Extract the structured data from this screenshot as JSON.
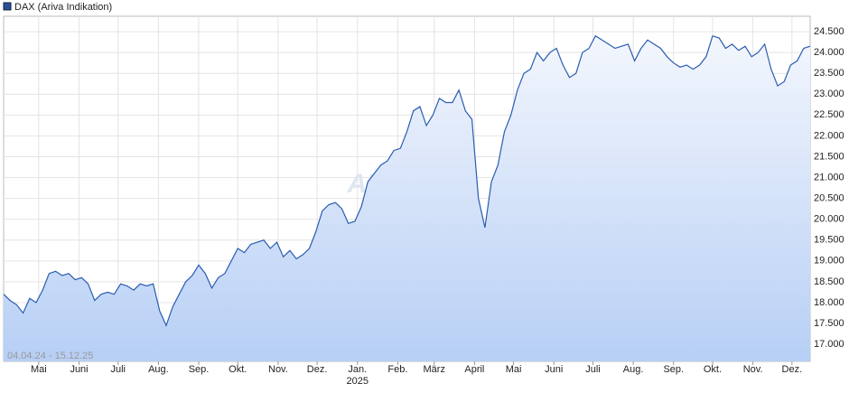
{
  "chart_data": {
    "type": "area",
    "series": [
      {
        "name": "DAX (Ariva Indikation)",
        "color": "#2a5db0",
        "values": [
          18200,
          18050,
          17950,
          17750,
          18100,
          18000,
          18300,
          18700,
          18750,
          18650,
          18700,
          18550,
          18600,
          18450,
          18050,
          18200,
          18250,
          18200,
          18450,
          18400,
          18300,
          18450,
          18400,
          18450,
          17800,
          17450,
          17900,
          18200,
          18500,
          18650,
          18900,
          18700,
          18350,
          18600,
          18700,
          19000,
          19300,
          19200,
          19400,
          19450,
          19500,
          19300,
          19450,
          19100,
          19250,
          19050,
          19150,
          19300,
          19700,
          20200,
          20350,
          20400,
          20250,
          19900,
          19950,
          20300,
          20900,
          21100,
          21300,
          21400,
          21650,
          21700,
          22100,
          22600,
          22700,
          22250,
          22500,
          22900,
          22800,
          22800,
          23100,
          22600,
          22400,
          20500,
          19800,
          20900,
          21300,
          22100,
          22500,
          23100,
          23500,
          23600,
          24000,
          23800,
          24000,
          24100,
          23700,
          23400,
          23500,
          24000,
          24100,
          24400,
          24300,
          24200,
          24100,
          24150,
          24200,
          23800,
          24100,
          24300,
          24200,
          24100,
          23900,
          23750,
          23650,
          23700,
          23600,
          23700,
          23900,
          24400,
          24350,
          24100,
          24200,
          24050,
          24150,
          23900,
          24000,
          24200,
          23600,
          23200,
          23300,
          23700,
          23800,
          24100,
          24150
        ]
      }
    ],
    "xlim": [
      0,
      124
    ],
    "xticks": [
      {
        "value": 5.4,
        "label": "Mai"
      },
      {
        "value": 11.6,
        "label": "Juni"
      },
      {
        "value": 17.6,
        "label": "Juli"
      },
      {
        "value": 23.8,
        "label": "Aug."
      },
      {
        "value": 30,
        "label": "Sep."
      },
      {
        "value": 36,
        "label": "Okt."
      },
      {
        "value": 42.2,
        "label": "Nov."
      },
      {
        "value": 48.2,
        "label": "Dez."
      },
      {
        "value": 54.4,
        "label": "Jan."
      },
      {
        "value": 60.6,
        "label": "Feb."
      },
      {
        "value": 66.2,
        "label": "März"
      },
      {
        "value": 72.4,
        "label": "April"
      },
      {
        "value": 78.4,
        "label": "Mai"
      },
      {
        "value": 84.6,
        "label": "Juni"
      },
      {
        "value": 90.6,
        "label": "Juli"
      },
      {
        "value": 96.8,
        "label": "Aug."
      },
      {
        "value": 103,
        "label": "Sep."
      },
      {
        "value": 109,
        "label": "Okt."
      },
      {
        "value": 115.2,
        "label": "Nov."
      },
      {
        "value": 121.2,
        "label": "Dez."
      }
    ],
    "year_label": "2025",
    "ylim": [
      16590,
      24870
    ],
    "yticks": [
      {
        "value": 17000,
        "label": "17.000"
      },
      {
        "value": 17500,
        "label": "17.500"
      },
      {
        "value": 18000,
        "label": "18.000"
      },
      {
        "value": 18500,
        "label": "18.500"
      },
      {
        "value": 19000,
        "label": "19.000"
      },
      {
        "value": 19500,
        "label": "19.500"
      },
      {
        "value": 20000,
        "label": "20.000"
      },
      {
        "value": 20500,
        "label": "20.500"
      },
      {
        "value": 21000,
        "label": "21.000"
      },
      {
        "value": 21500,
        "label": "21.500"
      },
      {
        "value": 22000,
        "label": "22.000"
      },
      {
        "value": 22500,
        "label": "22.500"
      },
      {
        "value": 23000,
        "label": "23.000"
      },
      {
        "value": 23500,
        "label": "23.500"
      },
      {
        "value": 24000,
        "label": "24.000"
      },
      {
        "value": 24500,
        "label": "24.500"
      }
    ],
    "date_range": "04.04.24 - 15.12.25",
    "watermark": "ARIVA.DE",
    "grid": true
  }
}
